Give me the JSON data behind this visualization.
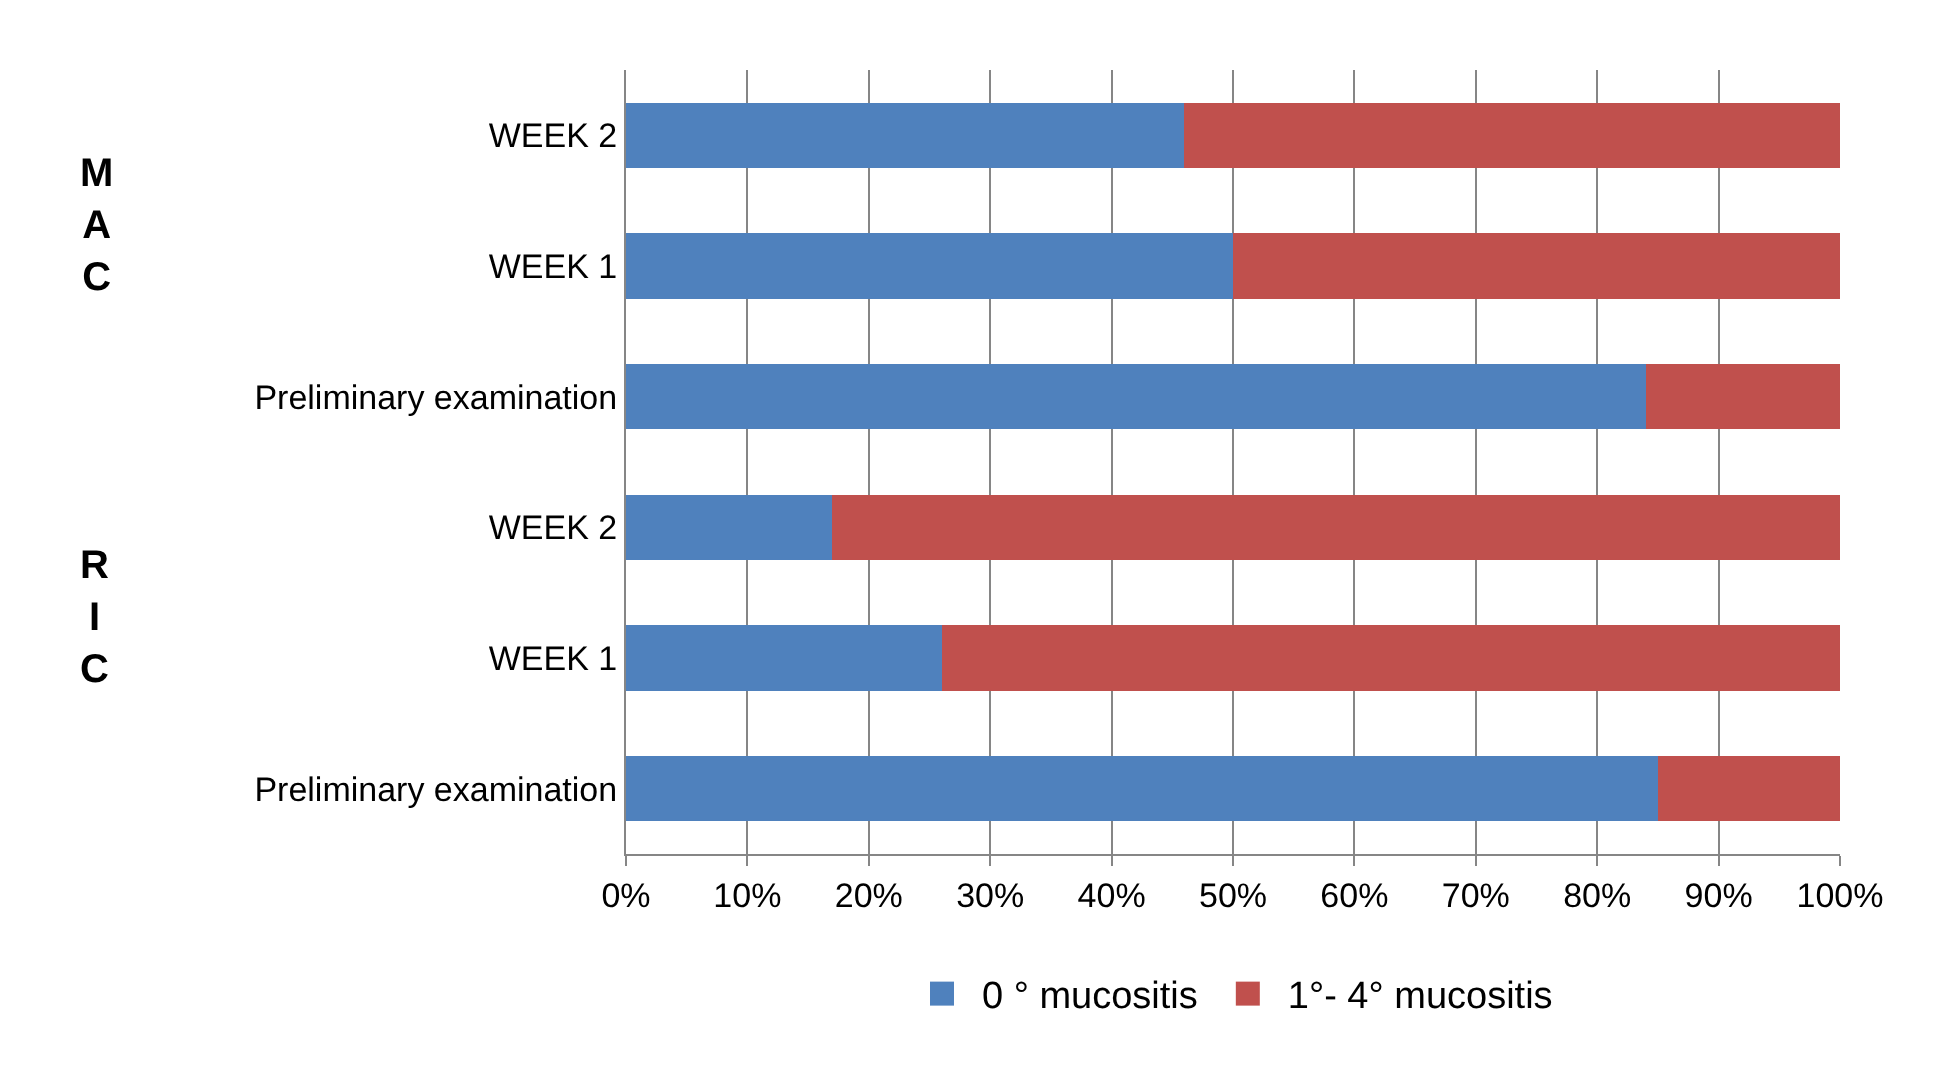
{
  "chart_data": {
    "type": "bar",
    "orientation": "horizontal",
    "stacked": true,
    "categories": [
      "WEEK 2",
      "WEEK 1",
      "Preliminary examination",
      "WEEK 2",
      "WEEK 1",
      "Preliminary examination"
    ],
    "series": [
      {
        "name": "0 ° mucositis",
        "color": "#4f81bd",
        "values": [
          46,
          50,
          84,
          17,
          26,
          85
        ]
      },
      {
        "name": "1°- 4° mucositis",
        "color": "#c0504d",
        "values": [
          54,
          50,
          16,
          83,
          74,
          15
        ]
      }
    ],
    "xlim": [
      0,
      100
    ],
    "xticks": [
      {
        "value": 0,
        "label": "0%"
      },
      {
        "value": 10,
        "label": "10%"
      },
      {
        "value": 20,
        "label": "20%"
      },
      {
        "value": 30,
        "label": "30%"
      },
      {
        "value": 40,
        "label": "40%"
      },
      {
        "value": 50,
        "label": "50%"
      },
      {
        "value": 60,
        "label": "60%"
      },
      {
        "value": 70,
        "label": "70%"
      },
      {
        "value": 80,
        "label": "80%"
      },
      {
        "value": 90,
        "label": "90%"
      },
      {
        "value": 100,
        "label": "100%"
      }
    ],
    "annotations": [
      "MAC",
      "RIC"
    ],
    "grid": "x",
    "legend": "bottom"
  }
}
